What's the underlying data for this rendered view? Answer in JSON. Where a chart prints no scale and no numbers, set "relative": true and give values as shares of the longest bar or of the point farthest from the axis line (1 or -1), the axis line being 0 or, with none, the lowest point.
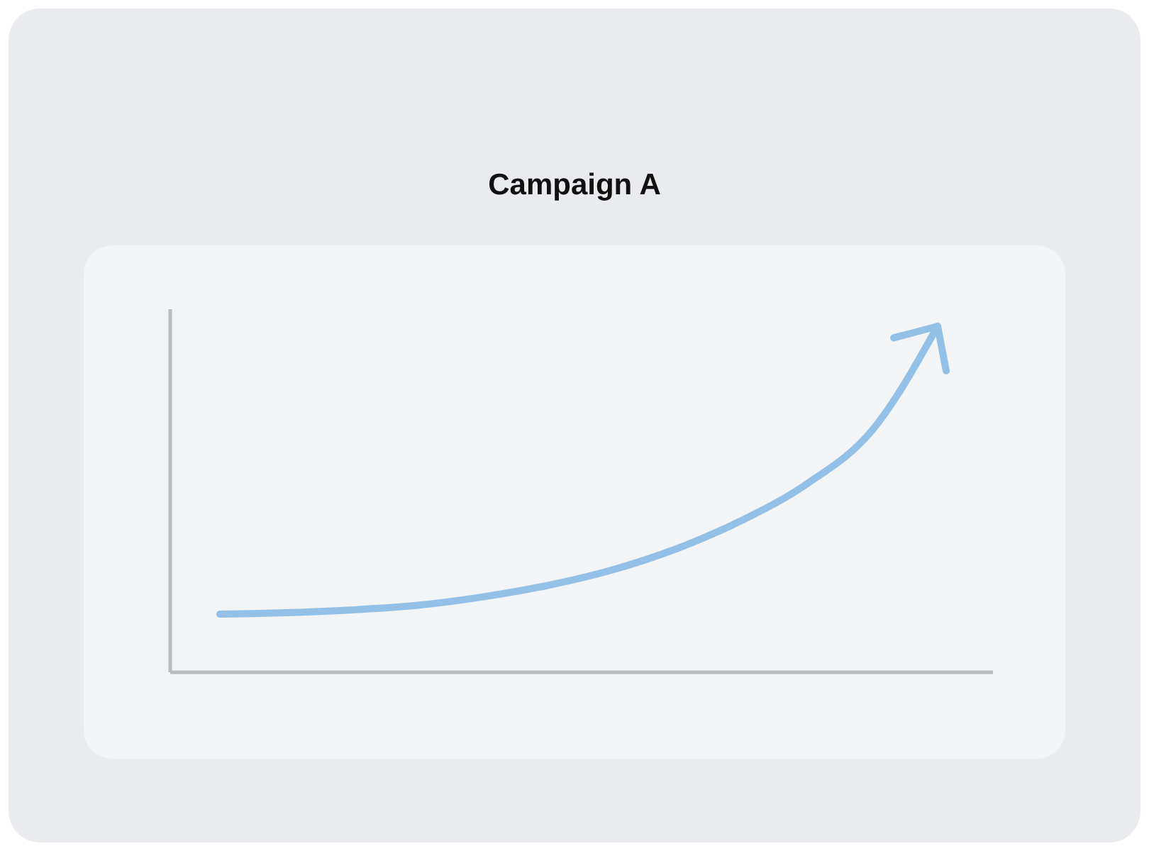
{
  "chart_data": {
    "type": "line",
    "title": "Campaign A",
    "relative": true,
    "categories": [
      null,
      null,
      null,
      null,
      null,
      null,
      null,
      null,
      null,
      null,
      null,
      null
    ],
    "series": [
      {
        "color": "#93c0e6",
        "values": [
          0.168,
          0.172,
          0.18,
          0.193,
          0.217,
          0.25,
          0.295,
          0.357,
          0.439,
          0.545,
          0.7,
          1.0
        ]
      }
    ]
  }
}
